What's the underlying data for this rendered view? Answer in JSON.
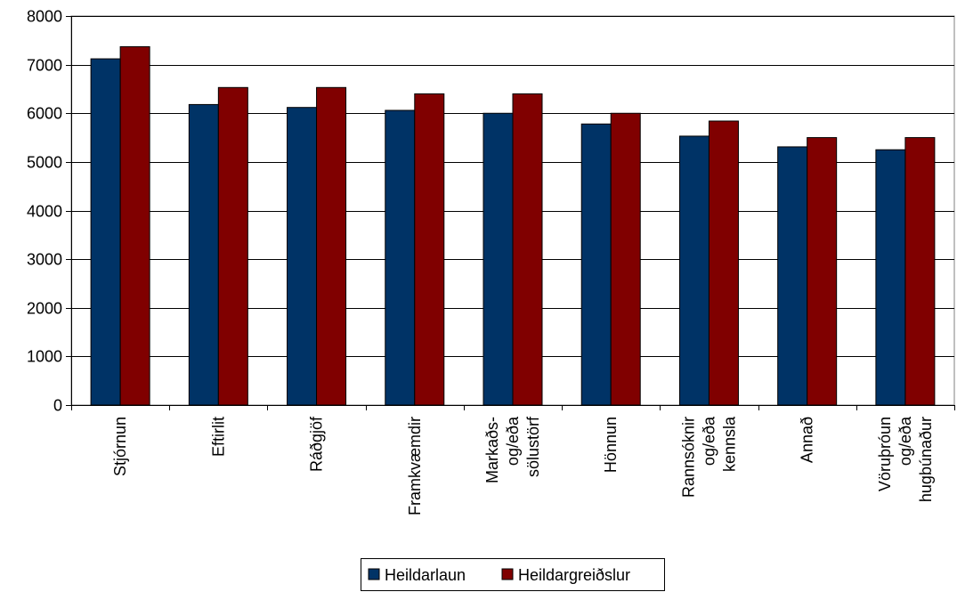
{
  "chart_data": {
    "type": "bar",
    "categories": [
      [
        "Stjórnun"
      ],
      [
        "Eftirlit"
      ],
      [
        "Ráðgjöf"
      ],
      [
        "Framkvæmdir"
      ],
      [
        "Markaðs-",
        "og/eða",
        "sölustörf"
      ],
      [
        "Hönnun"
      ],
      [
        "Rannsóknir",
        "og/eða",
        "kennsla"
      ],
      [
        "Annað"
      ],
      [
        "Vöruþróun",
        "og/eða",
        "hugbúnaður"
      ]
    ],
    "series": [
      {
        "name": "Heildarlaun",
        "color": "#003366",
        "values": [
          7120,
          6180,
          6120,
          6060,
          6000,
          5780,
          5530,
          5310,
          5250
        ]
      },
      {
        "name": "Heildargreiðslur",
        "color": "#800000",
        "values": [
          7370,
          6530,
          6530,
          6400,
          6400,
          6000,
          5840,
          5500,
          5500
        ]
      }
    ],
    "y_ticks": [
      "0",
      "1000",
      "2000",
      "3000",
      "4000",
      "5000",
      "6000",
      "7000",
      "8000"
    ],
    "ylim": [
      0,
      8000
    ],
    "grid": true,
    "legend_position": "bottom-center"
  }
}
